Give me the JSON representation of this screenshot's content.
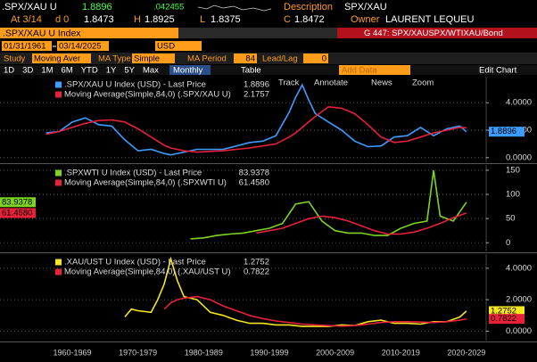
{
  "header": {
    "ticker": ".SPX/XAU U",
    "price": "1.8896",
    "change": ".042455",
    "desc_label": "Description",
    "desc": "SPX/XAU",
    "at": "At 3/14",
    "d": "d 0",
    "open": "1.8473",
    "h": "H",
    "high": "1.8925",
    "l": "L",
    "low": "1.8375",
    "c": "C",
    "close": "1.8472",
    "owner_label": "Owner",
    "owner": "LAURENT LEQUEU",
    "security": ".SPX/XAU U Index",
    "graph": "G 447: SPX/XAUSPX/WTIXAU/Bond",
    "start": "01/31/1961",
    "end": "03/14/2025",
    "currency": "USD",
    "study_label": "Study",
    "study": "Moving Aver",
    "ma_type_label": "MA Type",
    "ma_type": "Simple",
    "ma_period_label": "MA Period",
    "ma_period": "84",
    "lead_label": "Lead/Lag",
    "lead": "0",
    "ranges": [
      "1D",
      "3D",
      "1M",
      "6M",
      "YTD",
      "1Y",
      "5Y",
      "Max"
    ],
    "freq": "Monthly",
    "table": "Table",
    "add_data": "Add Data",
    "edit_chart": "Edit Chart",
    "tools": [
      "Track",
      "Annotate",
      "News",
      "Zoom"
    ]
  },
  "chart_data": [
    {
      "type": "line",
      "xlim": [
        1954,
        2028
      ],
      "ylim": [
        -0.34,
        5.9
      ],
      "grid": true,
      "tag_side": "right",
      "yticks": [
        {
          "value": 0,
          "label": "0.0000"
        },
        {
          "value": 2,
          "label": "2.0000"
        },
        {
          "value": 4,
          "label": "4.0000"
        }
      ],
      "x": [
        1961,
        1963,
        1965,
        1967,
        1969,
        1971,
        1973,
        1975,
        1977,
        1979,
        1980,
        1982,
        1984,
        1986,
        1988,
        1990,
        1992,
        1994,
        1996,
        1998,
        1999,
        2000,
        2001,
        2002,
        2004,
        2006,
        2008,
        2010,
        2012,
        2014,
        2016,
        2018,
        2020,
        2022,
        2024,
        2025
      ],
      "series": [
        {
          "name": ".SPX/XAU U Index (USD) - Last Price",
          "color": "#3d9cff",
          "tag": true,
          "values": [
            1.8,
            1.9,
            2.6,
            2.9,
            2.4,
            2.3,
            1.3,
            0.5,
            0.6,
            0.3,
            0.2,
            0.4,
            0.6,
            0.6,
            0.6,
            0.85,
            1.1,
            1.2,
            1.6,
            3.3,
            4.4,
            5.3,
            4.2,
            3.2,
            2.6,
            2.0,
            1.2,
            0.8,
            0.85,
            1.5,
            1.6,
            2.2,
            1.6,
            2.1,
            2.3,
            1.8896
          ]
        },
        {
          "name": "Moving Average(Simple,84,0) (.SPX/XAU U)",
          "color": "#e8203a",
          "tag": false,
          "values": [
            1.7,
            1.9,
            2.2,
            2.5,
            2.7,
            2.75,
            2.6,
            2.1,
            1.5,
            0.9,
            0.7,
            0.5,
            0.4,
            0.45,
            0.5,
            0.6,
            0.7,
            0.85,
            1.0,
            1.5,
            1.8,
            2.2,
            2.6,
            3.0,
            3.7,
            3.6,
            3.2,
            2.4,
            1.5,
            1.1,
            1.2,
            1.5,
            1.8,
            2.0,
            2.2,
            2.1757
          ]
        }
      ]
    },
    {
      "type": "line",
      "xlim": [
        1954,
        2028
      ],
      "ylim": [
        -18,
        161
      ],
      "grid": true,
      "tag_side": "left",
      "yticks": [
        0,
        50,
        100,
        150
      ],
      "x": [
        1983,
        1985,
        1987,
        1989,
        1991,
        1993,
        1995,
        1997,
        1999,
        2001,
        2003,
        2005,
        2007,
        2009,
        2011,
        2013,
        2015,
        2017,
        2019,
        2020,
        2021,
        2023,
        2025
      ],
      "series": [
        {
          "name": ".SPXWTI U Index (USD) - Last Price",
          "color": "#7ed321",
          "tag": true,
          "values": [
            8,
            10,
            15,
            18,
            20,
            25,
            30,
            40,
            80,
            85,
            45,
            25,
            20,
            20,
            15,
            15,
            30,
            40,
            45,
            150,
            55,
            45,
            83.9378
          ]
        },
        {
          "name": "Moving Average(Simple,84,0) (.SPXWTI U)",
          "color": "#e8203a",
          "tag": true,
          "values": [
            null,
            null,
            null,
            null,
            null,
            20,
            25,
            30,
            40,
            50,
            55,
            52,
            45,
            35,
            25,
            18,
            18,
            22,
            30,
            35,
            40,
            52,
            61.458
          ],
          "value_labels": [
            null,
            null,
            null,
            null,
            null,
            null,
            null,
            null,
            null,
            null,
            null,
            null,
            null,
            null,
            null,
            null,
            null,
            null,
            null,
            null,
            null,
            null,
            "61.4580"
          ]
        }
      ]
    },
    {
      "type": "line",
      "xlim": [
        1954,
        2028
      ],
      "ylim": [
        -0.6,
        4.9
      ],
      "grid": true,
      "tag_side": "right",
      "yticks": [
        {
          "value": 0,
          "label": "0.0000"
        },
        {
          "value": 2,
          "label": "2.0000"
        },
        {
          "value": 4,
          "label": "4.0000"
        }
      ],
      "xticks": [
        {
          "value": 1965,
          "label": "1960-1969"
        },
        {
          "value": 1975,
          "label": "1970-1979"
        },
        {
          "value": 1985,
          "label": "1980-1989"
        },
        {
          "value": 1995,
          "label": "1990-1999"
        },
        {
          "value": 2005,
          "label": "2000-2009"
        },
        {
          "value": 2015,
          "label": "2010-2019"
        },
        {
          "value": 2025,
          "label": "2020-2029"
        }
      ],
      "x": [
        1973,
        1974,
        1975,
        1977,
        1978,
        1979,
        1980,
        1981,
        1982,
        1984,
        1986,
        1988,
        1990,
        1992,
        1994,
        1996,
        1998,
        2000,
        2002,
        2004,
        2006,
        2008,
        2010,
        2012,
        2014,
        2016,
        2018,
        2020,
        2022,
        2024,
        2025
      ],
      "series": [
        {
          "name": ".XAU/UST U Index (USD) - Last Price",
          "color": "#f5e61e",
          "tag": true,
          "values": [
            0.9,
            1.4,
            1.3,
            1.2,
            2.0,
            3.0,
            4.6,
            3.2,
            2.2,
            2.0,
            1.2,
            1.0,
            0.7,
            0.5,
            0.5,
            0.4,
            0.4,
            0.3,
            0.3,
            0.3,
            0.4,
            0.35,
            0.6,
            0.7,
            0.5,
            0.5,
            0.45,
            0.6,
            0.6,
            0.9,
            1.2752
          ]
        },
        {
          "name": "Moving Average(Simple,84,0) (.XAU/UST U)",
          "color": "#e8203a",
          "tag": true,
          "values": [
            null,
            null,
            null,
            null,
            null,
            1.4,
            1.8,
            2.0,
            2.1,
            2.2,
            2.0,
            1.6,
            1.3,
            1.0,
            0.8,
            0.65,
            0.55,
            0.45,
            0.4,
            0.35,
            0.32,
            0.35,
            0.45,
            0.55,
            0.6,
            0.6,
            0.58,
            0.55,
            0.6,
            0.7,
            0.7822
          ]
        }
      ]
    }
  ]
}
